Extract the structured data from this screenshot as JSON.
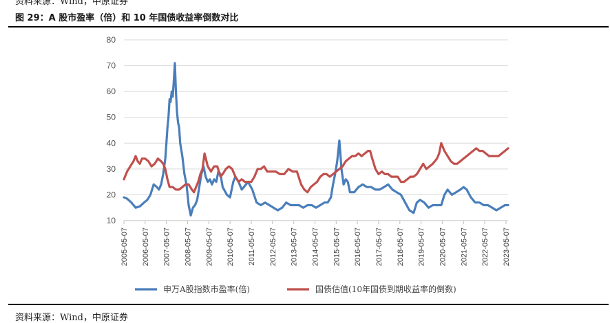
{
  "header": {
    "top_source": "资料来源：Wind，中原证券",
    "title": "图 29：A 股市盈率（倍）和 10 年国债收益率倒数对比"
  },
  "footer": {
    "source": "资料来源：Wind，中原证券"
  },
  "colors": {
    "pe": "#4a7ebb",
    "bond": "#c0504d",
    "grid": "#d9d9d9",
    "axis": "#bfbfbf"
  },
  "chart_data": {
    "type": "line",
    "ylim": [
      10,
      80
    ],
    "yticks": [
      10,
      20,
      30,
      40,
      50,
      60,
      70,
      80
    ],
    "xlim": [
      2005.35,
      2023.45
    ],
    "xticks": [
      "2005-05-07",
      "2006-05-07",
      "2007-05-07",
      "2008-05-07",
      "2009-05-07",
      "2010-05-07",
      "2011-05-07",
      "2012-05-07",
      "2013-05-07",
      "2014-05-07",
      "2015-05-07",
      "2016-05-07",
      "2017-05-07",
      "2018-05-07",
      "2019-05-07",
      "2020-05-07",
      "2021-05-07",
      "2022-05-07",
      "2023-05-07"
    ],
    "grid": "horizontal",
    "legend_position": "bottom",
    "series": [
      {
        "name": "申万A股指数市盈率(倍)",
        "color": "#4a7ebb",
        "x": [
          2005.35,
          2005.5,
          2005.7,
          2005.9,
          2006.1,
          2006.3,
          2006.45,
          2006.6,
          2006.75,
          2006.9,
          2007.0,
          2007.1,
          2007.2,
          2007.3,
          2007.35,
          2007.4,
          2007.45,
          2007.5,
          2007.55,
          2007.6,
          2007.65,
          2007.7,
          2007.75,
          2007.8,
          2007.85,
          2007.9,
          2007.95,
          2008.0,
          2008.1,
          2008.2,
          2008.3,
          2008.4,
          2008.5,
          2008.6,
          2008.7,
          2008.8,
          2008.9,
          2009.0,
          2009.1,
          2009.2,
          2009.3,
          2009.4,
          2009.5,
          2009.6,
          2009.7,
          2009.8,
          2009.9,
          2010.0,
          2010.2,
          2010.35,
          2010.5,
          2010.6,
          2010.75,
          2010.9,
          2011.0,
          2011.2,
          2011.4,
          2011.6,
          2011.8,
          2012.0,
          2012.2,
          2012.4,
          2012.6,
          2012.8,
          2013.0,
          2013.2,
          2013.4,
          2013.6,
          2013.8,
          2014.0,
          2014.2,
          2014.4,
          2014.6,
          2014.8,
          2014.95,
          2015.1,
          2015.2,
          2015.3,
          2015.4,
          2015.5,
          2015.6,
          2015.7,
          2015.8,
          2015.9,
          2016.0,
          2016.2,
          2016.4,
          2016.6,
          2016.8,
          2017.0,
          2017.2,
          2017.4,
          2017.6,
          2017.8,
          2018.0,
          2018.2,
          2018.4,
          2018.6,
          2018.8,
          2019.0,
          2019.15,
          2019.3,
          2019.5,
          2019.7,
          2019.9,
          2020.1,
          2020.3,
          2020.45,
          2020.6,
          2020.8,
          2021.0,
          2021.2,
          2021.35,
          2021.5,
          2021.7,
          2021.9,
          2022.1,
          2022.3,
          2022.5,
          2022.7,
          2022.9,
          2023.1,
          2023.3,
          2023.45
        ],
        "y": [
          19,
          18.5,
          17,
          15,
          15.5,
          17,
          18,
          20,
          24,
          23,
          22,
          24,
          28,
          34,
          40,
          46,
          50,
          57,
          56,
          60,
          58,
          64,
          71,
          60,
          52,
          48,
          46,
          40,
          35,
          28,
          24,
          16,
          12,
          15,
          16,
          18,
          23,
          28,
          31,
          27,
          25,
          26,
          24,
          26,
          25,
          29,
          28,
          23,
          20,
          19,
          25,
          27,
          25,
          22,
          23,
          25,
          22,
          17,
          16,
          17,
          16,
          15,
          14,
          15,
          17,
          16,
          16,
          16,
          15,
          16,
          16,
          15,
          16,
          17,
          17,
          19,
          24,
          28,
          33,
          41,
          30,
          24,
          26,
          25,
          21,
          21,
          23,
          24,
          23,
          23,
          22,
          22,
          23,
          24,
          22,
          21,
          20,
          17,
          14,
          13,
          17,
          18,
          17,
          15,
          16,
          16,
          16,
          20,
          22,
          20,
          21,
          22,
          23,
          22,
          19,
          17,
          17,
          16,
          16,
          15,
          14,
          15,
          16,
          16
        ],
        "line_width": 3.2
      },
      {
        "name": "国债估值(10年国债到期收益率的倒数)",
        "color": "#c0504d",
        "x": [
          2005.35,
          2005.5,
          2005.65,
          2005.8,
          2005.9,
          2006.0,
          2006.1,
          2006.2,
          2006.35,
          2006.5,
          2006.65,
          2006.8,
          2006.95,
          2007.1,
          2007.2,
          2007.3,
          2007.4,
          2007.5,
          2007.65,
          2007.8,
          2007.95,
          2008.1,
          2008.25,
          2008.4,
          2008.55,
          2008.65,
          2008.75,
          2008.85,
          2008.95,
          2009.05,
          2009.15,
          2009.3,
          2009.45,
          2009.6,
          2009.75,
          2009.9,
          2010.0,
          2010.15,
          2010.3,
          2010.45,
          2010.6,
          2010.75,
          2010.9,
          2011.05,
          2011.2,
          2011.35,
          2011.5,
          2011.65,
          2011.8,
          2011.95,
          2012.1,
          2012.3,
          2012.5,
          2012.7,
          2012.9,
          2013.1,
          2013.3,
          2013.5,
          2013.7,
          2013.85,
          2014.0,
          2014.15,
          2014.3,
          2014.45,
          2014.6,
          2014.75,
          2014.9,
          2015.05,
          2015.2,
          2015.35,
          2015.5,
          2015.65,
          2015.8,
          2015.95,
          2016.1,
          2016.25,
          2016.4,
          2016.55,
          2016.7,
          2016.85,
          2016.95,
          2017.05,
          2017.2,
          2017.35,
          2017.5,
          2017.65,
          2017.8,
          2017.95,
          2018.1,
          2018.25,
          2018.4,
          2018.55,
          2018.7,
          2018.85,
          2019.0,
          2019.15,
          2019.3,
          2019.45,
          2019.6,
          2019.75,
          2019.9,
          2020.0,
          2020.1,
          2020.2,
          2020.3,
          2020.45,
          2020.6,
          2020.75,
          2020.9,
          2021.05,
          2021.2,
          2021.35,
          2021.5,
          2021.65,
          2021.8,
          2021.95,
          2022.1,
          2022.25,
          2022.4,
          2022.55,
          2022.7,
          2022.85,
          2023.0,
          2023.15,
          2023.3,
          2023.45
        ],
        "y": [
          26,
          29,
          31,
          33,
          35,
          33,
          32,
          34,
          34,
          33,
          31,
          32,
          34,
          33,
          32,
          30,
          26,
          23,
          23,
          22,
          22,
          23,
          24,
          24,
          22,
          21,
          23,
          25,
          28,
          30,
          36,
          31,
          29,
          31,
          31,
          27,
          28,
          30,
          31,
          30,
          27,
          25,
          26,
          25,
          25,
          25,
          27,
          30,
          30,
          31,
          29,
          29,
          29,
          28,
          28,
          30,
          29,
          29,
          24,
          22,
          21,
          23,
          24,
          25,
          27,
          28,
          28,
          27,
          28,
          29,
          30,
          31,
          33,
          34,
          35,
          35,
          36,
          35,
          36,
          37,
          37,
          34,
          30,
          28,
          29,
          28,
          28,
          27,
          27,
          27,
          25,
          25,
          26,
          27,
          27,
          28,
          30,
          32,
          30,
          31,
          32,
          33,
          34,
          36,
          40,
          37,
          35,
          33,
          32,
          32,
          33,
          34,
          35,
          36,
          37,
          38,
          37,
          37,
          36,
          35,
          35,
          35,
          35,
          36,
          37,
          38
        ],
        "line_width": 3.2
      }
    ]
  }
}
